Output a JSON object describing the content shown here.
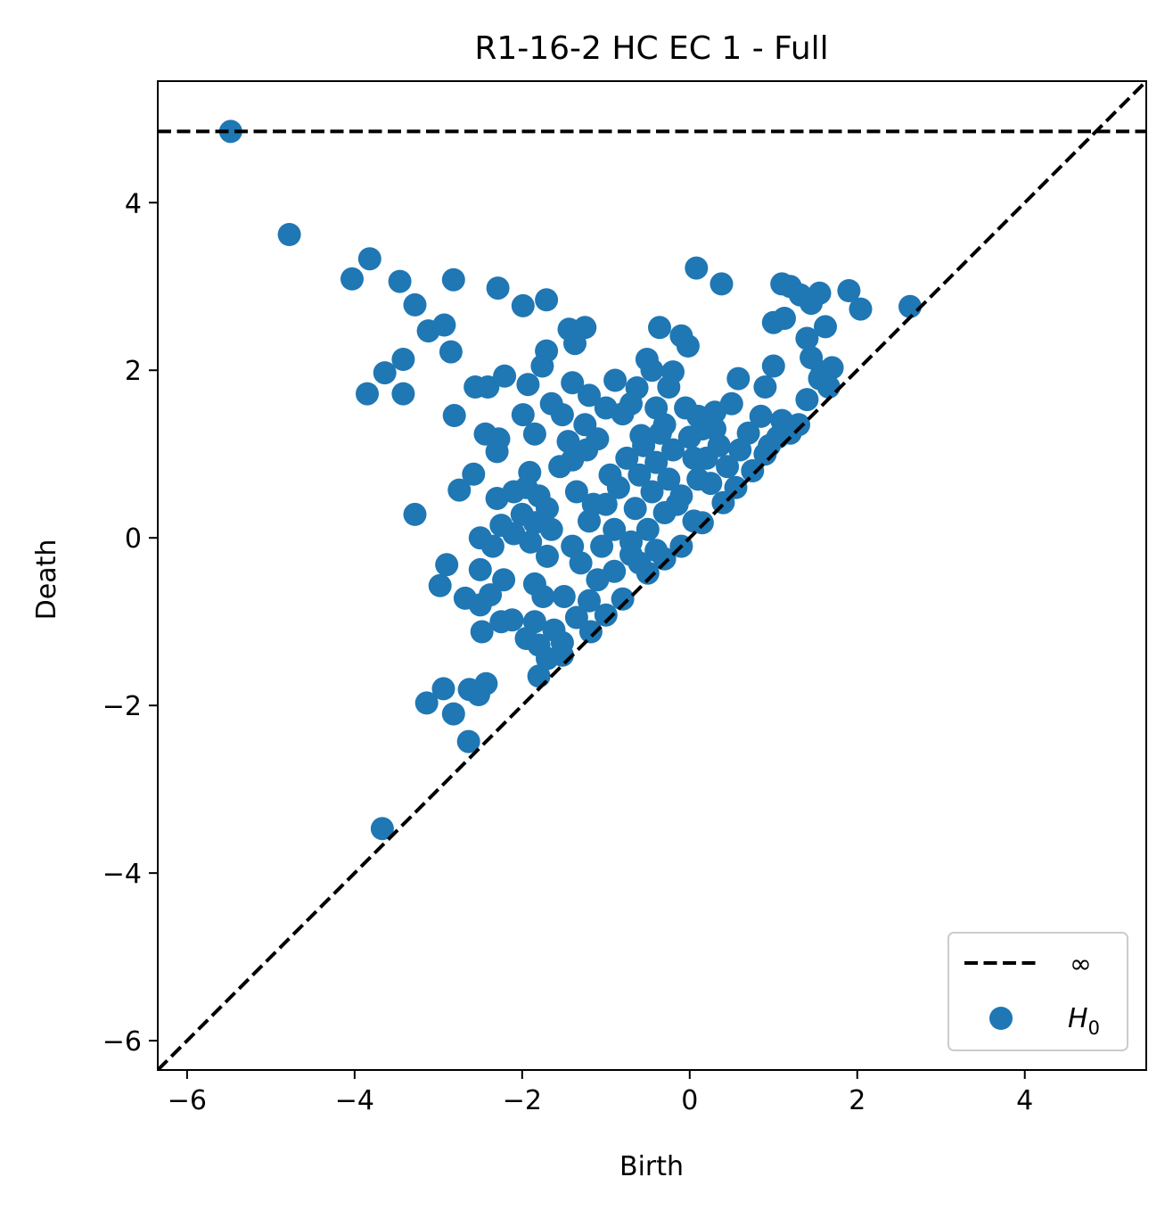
{
  "chart_data": {
    "type": "scatter",
    "title": "R1-16-2 HC EC 1 - Full",
    "xlabel": "Birth",
    "ylabel": "Death",
    "xlim": [
      -6.35,
      5.45
    ],
    "ylim": [
      -6.35,
      5.45
    ],
    "xticks": [
      -6,
      -4,
      -2,
      0,
      2,
      4
    ],
    "yticks": [
      -6,
      -4,
      -2,
      0,
      2,
      4
    ],
    "xtick_labels": [
      "−6",
      "−4",
      "−2",
      "0",
      "2",
      "4"
    ],
    "ytick_labels": [
      "−6",
      "−4",
      "−2",
      "0",
      "2",
      "4"
    ],
    "grid": false,
    "legend": {
      "placement": "lower-right",
      "entries": [
        {
          "label": "∞",
          "kind": "dashed-line",
          "color": "#000000"
        },
        {
          "label_base": "H",
          "label_sub": "0",
          "kind": "marker",
          "color": "#1f77b4"
        }
      ]
    },
    "infinity_line_y": 4.85,
    "diagonal": true,
    "series": [
      {
        "color": "#1f77b4",
        "points": [
          [
            -5.48,
            4.85
          ],
          [
            -4.78,
            3.62
          ],
          [
            -3.82,
            3.33
          ],
          [
            -4.03,
            3.09
          ],
          [
            -3.46,
            3.06
          ],
          [
            -3.28,
            2.78
          ],
          [
            -2.82,
            3.08
          ],
          [
            -2.29,
            2.98
          ],
          [
            -1.99,
            2.77
          ],
          [
            -1.71,
            2.84
          ],
          [
            -3.12,
            2.47
          ],
          [
            -2.93,
            2.54
          ],
          [
            -2.85,
            2.22
          ],
          [
            -3.42,
            2.13
          ],
          [
            -3.64,
            1.97
          ],
          [
            -3.85,
            1.72
          ],
          [
            -3.42,
            1.72
          ],
          [
            -2.56,
            1.8
          ],
          [
            -2.41,
            1.8
          ],
          [
            -2.21,
            1.93
          ],
          [
            -1.93,
            1.83
          ],
          [
            -1.76,
            2.05
          ],
          [
            -1.71,
            2.23
          ],
          [
            -1.44,
            2.49
          ],
          [
            -1.25,
            2.51
          ],
          [
            -1.37,
            2.32
          ],
          [
            -2.81,
            1.46
          ],
          [
            -1.99,
            1.47
          ],
          [
            -1.85,
            1.24
          ],
          [
            -1.65,
            1.6
          ],
          [
            -1.52,
            1.47
          ],
          [
            -2.44,
            1.24
          ],
          [
            -2.28,
            1.18
          ],
          [
            -2.3,
            1.03
          ],
          [
            -2.58,
            0.76
          ],
          [
            -2.75,
            0.57
          ],
          [
            -3.28,
            0.28
          ],
          [
            -1.91,
            0.78
          ],
          [
            -1.4,
            0.93
          ],
          [
            -1.23,
            1.05
          ],
          [
            -1.1,
            1.18
          ],
          [
            -0.89,
            1.88
          ],
          [
            -0.63,
            1.79
          ],
          [
            -0.51,
            2.13
          ],
          [
            -0.36,
            2.51
          ],
          [
            -0.1,
            2.41
          ],
          [
            0.08,
            3.22
          ],
          [
            0.38,
            3.03
          ],
          [
            -0.02,
            2.29
          ],
          [
            -0.2,
            1.98
          ],
          [
            -0.4,
            1.55
          ],
          [
            -0.8,
            1.48
          ],
          [
            -0.58,
            1.22
          ],
          [
            -0.3,
            1.35
          ],
          [
            0.1,
            1.45
          ],
          [
            0.3,
            1.3
          ],
          [
            0.58,
            1.9
          ],
          [
            0.5,
            1.6
          ],
          [
            0.7,
            1.25
          ],
          [
            0.95,
            1.1
          ],
          [
            0.85,
            1.45
          ],
          [
            0.9,
            1.8
          ],
          [
            1.0,
            2.05
          ],
          [
            1.0,
            2.57
          ],
          [
            1.13,
            2.62
          ],
          [
            1.1,
            3.03
          ],
          [
            1.2,
            3.0
          ],
          [
            1.32,
            2.9
          ],
          [
            1.45,
            2.8
          ],
          [
            1.55,
            2.92
          ],
          [
            1.9,
            2.95
          ],
          [
            2.04,
            2.73
          ],
          [
            2.63,
            2.76
          ],
          [
            1.62,
            2.52
          ],
          [
            1.4,
            2.38
          ],
          [
            1.45,
            2.15
          ],
          [
            1.58,
            1.98
          ],
          [
            1.7,
            2.03
          ],
          [
            1.55,
            1.9
          ],
          [
            1.66,
            1.8
          ],
          [
            1.4,
            1.65
          ],
          [
            1.1,
            1.4
          ],
          [
            1.05,
            1.2
          ],
          [
            1.2,
            1.25
          ],
          [
            1.3,
            1.35
          ],
          [
            -2.3,
            0.47
          ],
          [
            -2.1,
            0.55
          ],
          [
            -1.95,
            0.6
          ],
          [
            -1.8,
            0.5
          ],
          [
            -1.7,
            0.35
          ],
          [
            -2.0,
            0.28
          ],
          [
            -2.25,
            0.15
          ],
          [
            -2.1,
            0.05
          ],
          [
            -1.85,
            0.18
          ],
          [
            -1.65,
            0.1
          ],
          [
            -2.5,
            0.0
          ],
          [
            -2.35,
            -0.1
          ],
          [
            -1.9,
            -0.05
          ],
          [
            -1.7,
            -0.22
          ],
          [
            -1.4,
            -0.1
          ],
          [
            -2.9,
            -0.32
          ],
          [
            -2.98,
            -0.57
          ],
          [
            -2.5,
            -0.38
          ],
          [
            -2.22,
            -0.5
          ],
          [
            -1.85,
            -0.55
          ],
          [
            -1.75,
            -0.7
          ],
          [
            -1.5,
            -0.7
          ],
          [
            -2.68,
            -0.72
          ],
          [
            -2.5,
            -0.8
          ],
          [
            -2.38,
            -0.68
          ],
          [
            -2.25,
            -1.0
          ],
          [
            -2.12,
            -0.98
          ],
          [
            -2.48,
            -1.12
          ],
          [
            -1.85,
            -1.0
          ],
          [
            -1.95,
            -1.2
          ],
          [
            -1.8,
            -1.28
          ],
          [
            -1.62,
            -1.1
          ],
          [
            -1.52,
            -1.25
          ],
          [
            -1.7,
            -1.44
          ],
          [
            -1.8,
            -1.65
          ],
          [
            -1.52,
            -1.4
          ],
          [
            -3.14,
            -1.97
          ],
          [
            -2.94,
            -1.8
          ],
          [
            -2.82,
            -2.1
          ],
          [
            -2.63,
            -1.81
          ],
          [
            -2.52,
            -1.87
          ],
          [
            -2.43,
            -1.74
          ],
          [
            -2.64,
            -2.43
          ],
          [
            -3.67,
            -3.47
          ],
          [
            -1.3,
            -0.3
          ],
          [
            -1.1,
            -0.5
          ],
          [
            -1.2,
            -0.75
          ],
          [
            -1.35,
            -0.95
          ],
          [
            -1.0,
            -0.92
          ],
          [
            -0.8,
            -0.73
          ],
          [
            -1.18,
            -1.12
          ],
          [
            -0.9,
            -0.4
          ],
          [
            -0.7,
            -0.2
          ],
          [
            -0.5,
            -0.42
          ],
          [
            -0.3,
            -0.25
          ],
          [
            -0.1,
            -0.1
          ],
          [
            0.15,
            0.18
          ],
          [
            0.4,
            0.42
          ],
          [
            0.55,
            0.6
          ],
          [
            0.75,
            0.8
          ],
          [
            0.9,
            1.0
          ],
          [
            -1.2,
            0.2
          ],
          [
            -1.0,
            0.4
          ],
          [
            -0.85,
            0.6
          ],
          [
            -0.6,
            0.75
          ],
          [
            -0.4,
            0.9
          ],
          [
            -0.2,
            1.05
          ],
          [
            0.0,
            1.2
          ],
          [
            0.2,
            0.95
          ],
          [
            0.35,
            1.1
          ],
          [
            0.1,
            0.7
          ],
          [
            -0.1,
            0.5
          ],
          [
            -0.3,
            0.3
          ],
          [
            -0.5,
            0.1
          ],
          [
            -0.7,
            -0.05
          ],
          [
            -0.9,
            0.1
          ],
          [
            -1.05,
            -0.1
          ],
          [
            -0.65,
            0.35
          ],
          [
            -0.45,
            0.55
          ],
          [
            -0.25,
            0.7
          ],
          [
            0.05,
            0.95
          ],
          [
            0.25,
            0.65
          ],
          [
            0.45,
            0.85
          ],
          [
            0.6,
            1.05
          ],
          [
            0.3,
            1.5
          ],
          [
            0.15,
            1.3
          ],
          [
            -0.05,
            1.55
          ],
          [
            -0.25,
            1.8
          ],
          [
            -0.45,
            2.0
          ],
          [
            -0.7,
            1.6
          ],
          [
            -1.0,
            1.55
          ],
          [
            -1.2,
            1.7
          ],
          [
            -1.4,
            1.85
          ],
          [
            -1.25,
            1.35
          ],
          [
            -1.45,
            1.15
          ],
          [
            -1.55,
            0.85
          ],
          [
            -1.35,
            0.55
          ],
          [
            -1.15,
            0.4
          ],
          [
            -0.95,
            0.75
          ],
          [
            -0.75,
            0.95
          ],
          [
            -0.55,
            1.1
          ],
          [
            -0.35,
            1.25
          ],
          [
            -0.15,
            0.4
          ],
          [
            0.05,
            0.2
          ],
          [
            -0.6,
            -0.3
          ],
          [
            -0.4,
            -0.15
          ]
        ]
      }
    ]
  }
}
